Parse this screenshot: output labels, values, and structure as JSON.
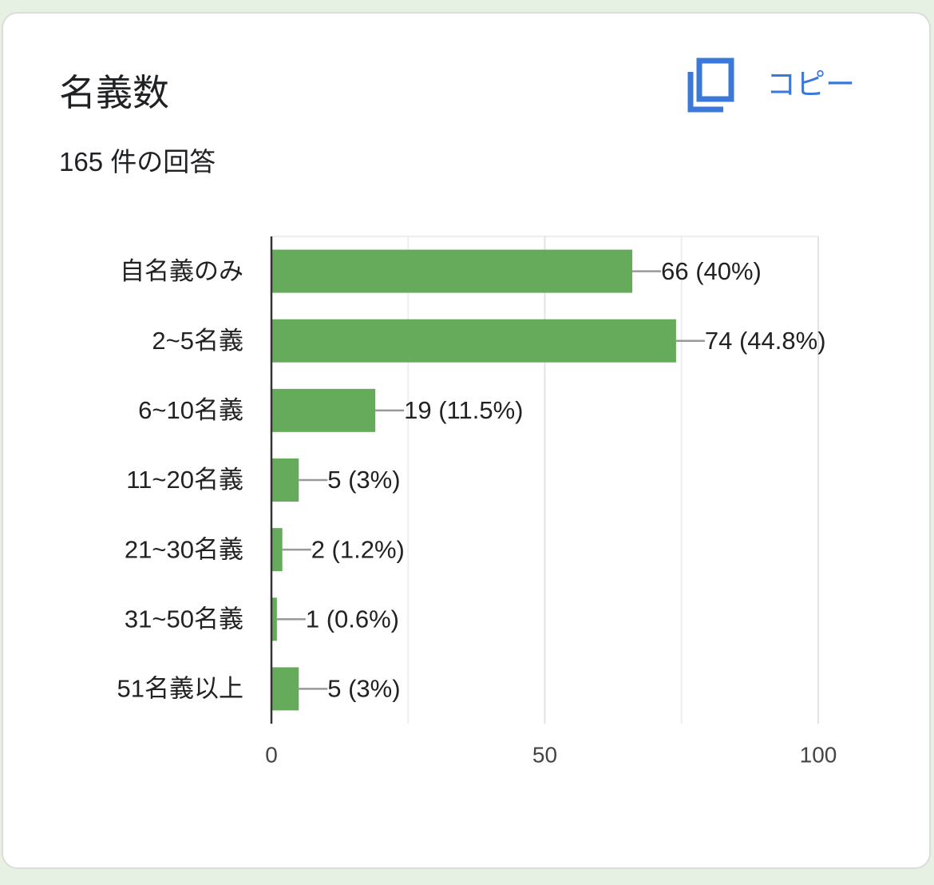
{
  "title": "名義数",
  "subtitle": "165 件の回答",
  "copy_button": "コピー",
  "chart_data": {
    "type": "hbar",
    "categories": [
      "自名義のみ",
      "2~5名義",
      "6~10名義",
      "11~20名義",
      "21~30名義",
      "31~50名義",
      "51名義以上"
    ],
    "values": [
      66,
      74,
      19,
      5,
      2,
      1,
      5
    ],
    "value_labels": [
      "66 (40%)",
      "74 (44.8%)",
      "19 (11.5%)",
      "5 (3%)",
      "2 (1.2%)",
      "1 (0.6%)",
      "5 (3%)"
    ],
    "color": "#66ab5b",
    "xlim": [
      0,
      100
    ],
    "xticks": [
      0,
      50,
      100
    ],
    "minor_xticks": [
      25,
      75
    ],
    "grid": true
  }
}
